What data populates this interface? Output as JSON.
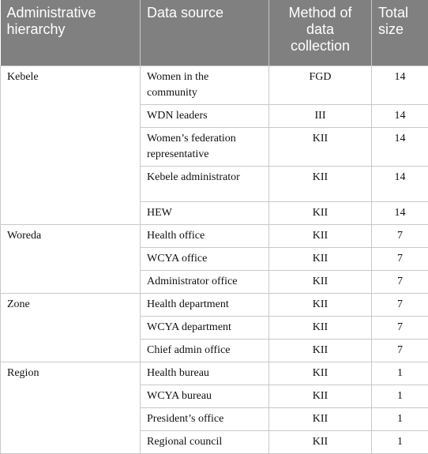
{
  "table": {
    "header": [
      "Administrative hierarchy",
      "Data source",
      "Method of data collection",
      "Total size"
    ],
    "groups": [
      {
        "name": "Kebele",
        "rows": [
          [
            "Women in the community",
            "FGD",
            14
          ],
          [
            "WDN leaders",
            "III",
            14
          ],
          [
            "Women’s federation representative",
            "KII",
            14
          ],
          [
            "Kebele administrator",
            "KII",
            14
          ],
          [
            "HEW",
            "KII",
            14
          ]
        ]
      },
      {
        "name": "Woreda",
        "rows": [
          [
            "Health office",
            "KII",
            7
          ],
          [
            "WCYA office",
            "KII",
            7
          ],
          [
            "Administrator office",
            "KII",
            7
          ]
        ]
      },
      {
        "name": "Zone",
        "rows": [
          [
            "Health department",
            "KII",
            7
          ],
          [
            "WCYA department",
            "KII",
            7
          ],
          [
            "Chief admin office",
            "KII",
            7
          ]
        ]
      },
      {
        "name": "Region",
        "rows": [
          [
            "Health bureau",
            "KII",
            1
          ],
          [
            "WCYA bureau",
            "KII",
            1
          ],
          [
            "President’s office",
            "KII",
            1
          ],
          [
            "Regional council",
            "KII",
            1
          ]
        ]
      }
    ]
  }
}
